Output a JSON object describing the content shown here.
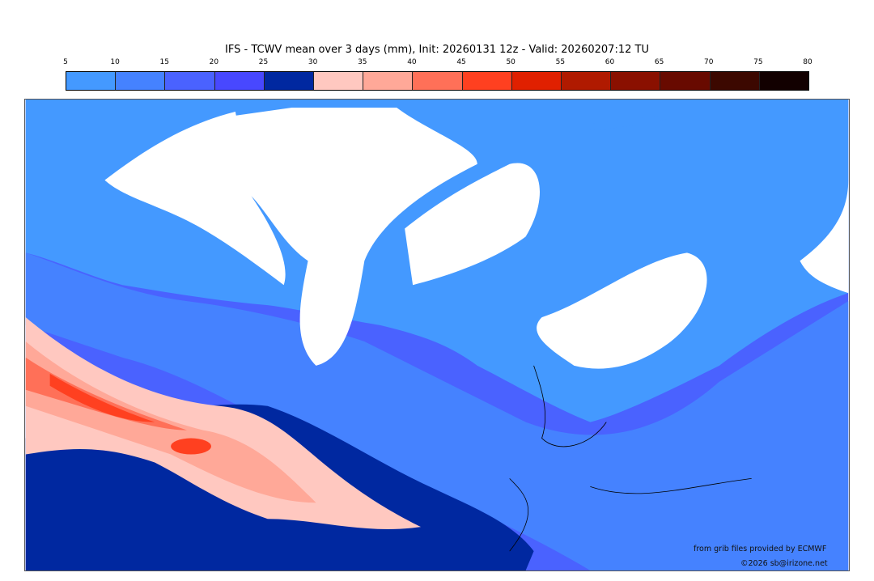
{
  "title": "IFS - TCWV mean over 3 days (mm), Init: 20260131 12z - Valid: 20260207:12 TU",
  "colorbar": {
    "ticks": [
      "5",
      "10",
      "15",
      "20",
      "25",
      "30",
      "35",
      "40",
      "45",
      "50",
      "55",
      "60",
      "65",
      "70",
      "75",
      "80"
    ],
    "colors": [
      "#4499ff",
      "#4582ff",
      "#4a62ff",
      "#4848ff",
      "#0028a0",
      "#ffc8c0",
      "#ffa898",
      "#ff7058",
      "#ff4020",
      "#e02000",
      "#b01a00",
      "#8a1000",
      "#680a00",
      "#3c0800",
      "#120000"
    ]
  },
  "credits": {
    "source": "from grib files provided by ECMWF",
    "copyright": "©2026 sb@irizone.net"
  }
}
